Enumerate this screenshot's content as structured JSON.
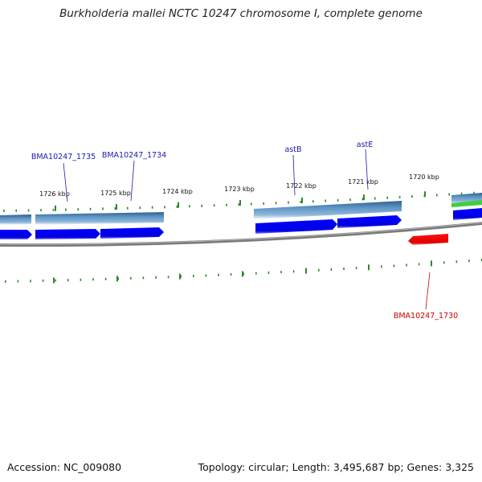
{
  "title": "Burkholderia mallei NCTC 10247 chromosome I, complete genome",
  "footer": {
    "accession": "Accession: NC_009080",
    "summary": "Topology: circular; Length: 3,495,687 bp; Genes: 3,325"
  },
  "kbp_labels": [
    "1726 kbp",
    "1725 kbp",
    "1724 kbp",
    "1723 kbp",
    "1722 kbp",
    "1721 kbp",
    "1720 kbp"
  ],
  "gene_labels_top": [
    "BMA10247_1735",
    "BMA10247_1734",
    "astB",
    "astE"
  ],
  "gene_labels_bottom": [
    "BMA10247_1730"
  ],
  "colors": {
    "forward_gene": "#0000ee",
    "reverse_gene": "#ff0000",
    "feature_band": "#4f86b8",
    "backbone": "#808080",
    "tick": "#1f7a1f",
    "label_blue": "#1a1aaa",
    "label_red": "#cc0000"
  }
}
